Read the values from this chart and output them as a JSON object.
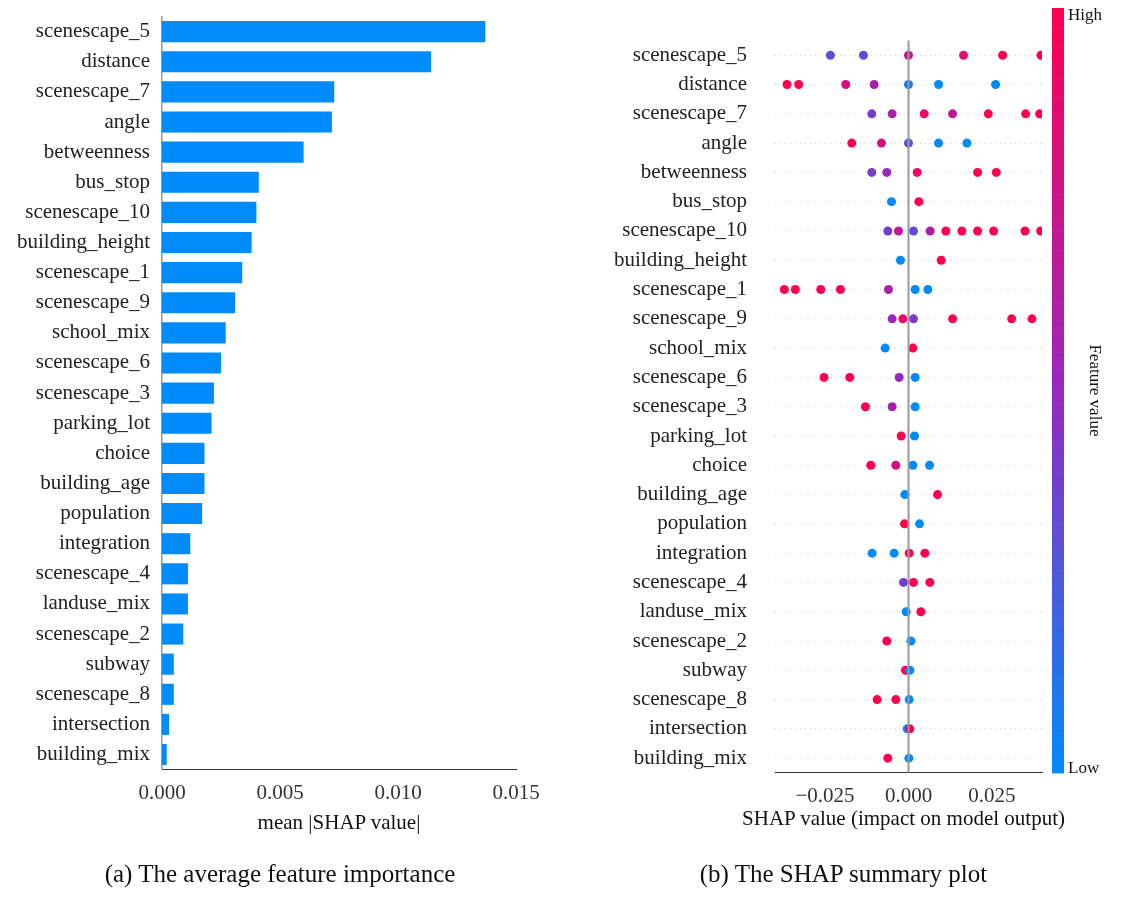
{
  "chart_data": [
    {
      "type": "bar",
      "orientation": "horizontal",
      "categories": [
        "scenescape_5",
        "distance",
        "scenescape_7",
        "angle",
        "betweenness",
        "bus_stop",
        "scenescape_10",
        "building_height",
        "scenescape_1",
        "scenescape_9",
        "school_mix",
        "scenescape_6",
        "scenescape_3",
        "parking_lot",
        "choice",
        "building_age",
        "population",
        "integration",
        "scenescape_4",
        "landuse_mix",
        "scenescape_2",
        "subway",
        "scenescape_8",
        "intersection",
        "building_mix"
      ],
      "values": [
        0.0137,
        0.0114,
        0.0073,
        0.0072,
        0.006,
        0.0041,
        0.004,
        0.0038,
        0.0034,
        0.0031,
        0.0027,
        0.0025,
        0.0022,
        0.0021,
        0.0018,
        0.0018,
        0.0017,
        0.0012,
        0.0011,
        0.0011,
        0.0009,
        0.0005,
        0.0005,
        0.0003,
        0.0002
      ],
      "color": "#008bfb",
      "xlim": [
        0,
        0.015
      ],
      "xticks": [
        {
          "value": 0,
          "label": "0.000"
        },
        {
          "value": 0.005,
          "label": "0.005"
        },
        {
          "value": 0.01,
          "label": "0.010"
        },
        {
          "value": 0.015,
          "label": "0.015"
        }
      ],
      "xlabel": "mean |SHAP value|",
      "annotations": [
        "(a) The average feature importance"
      ]
    },
    {
      "type": "scatter",
      "orientation": "horizontal",
      "marker": "circle",
      "grid": "y",
      "categories": [
        "scenescape_5",
        "distance",
        "scenescape_7",
        "angle",
        "betweenness",
        "bus_stop",
        "scenescape_10",
        "building_height",
        "scenescape_1",
        "scenescape_9",
        "school_mix",
        "scenescape_6",
        "scenescape_3",
        "parking_lot",
        "choice",
        "building_age",
        "population",
        "integration",
        "scenescape_4",
        "landuse_mix",
        "scenescape_2",
        "subway",
        "scenescape_8",
        "intersection",
        "building_mix"
      ],
      "series": [
        {
          "x": [
            "scenescape_5",
            "scenescape_5",
            "scenescape_5",
            "scenescape_5",
            "scenescape_5",
            "scenescape_5",
            "distance",
            "distance",
            "distance",
            "distance",
            "distance",
            "distance",
            "distance",
            "scenescape_7",
            "scenescape_7",
            "scenescape_7",
            "scenescape_7",
            "scenescape_7",
            "scenescape_7",
            "scenescape_7",
            "angle",
            "angle",
            "angle",
            "angle",
            "angle",
            "betweenness",
            "betweenness",
            "betweenness",
            "betweenness",
            "betweenness",
            "bus_stop",
            "bus_stop",
            "scenescape_10",
            "scenescape_10",
            "scenescape_10",
            "scenescape_10",
            "scenescape_10",
            "scenescape_10",
            "scenescape_10",
            "scenescape_10",
            "scenescape_10",
            "scenescape_10",
            "building_height",
            "building_height",
            "scenescape_1",
            "scenescape_1",
            "scenescape_1",
            "scenescape_1",
            "scenescape_1",
            "scenescape_1",
            "scenescape_1",
            "scenescape_9",
            "scenescape_9",
            "scenescape_9",
            "scenescape_9",
            "scenescape_9",
            "scenescape_9",
            "school_mix",
            "school_mix",
            "scenescape_6",
            "scenescape_6",
            "scenescape_6",
            "scenescape_6",
            "scenescape_3",
            "scenescape_3",
            "scenescape_3",
            "parking_lot",
            "parking_lot",
            "choice",
            "choice",
            "choice",
            "choice",
            "building_age",
            "building_age",
            "population",
            "population",
            "integration",
            "integration",
            "integration",
            "integration",
            "scenescape_4",
            "scenescape_4",
            "scenescape_4",
            "landuse_mix",
            "landuse_mix",
            "scenescape_2",
            "scenescape_2",
            "subway",
            "subway",
            "scenescape_8",
            "scenescape_8",
            "scenescape_8",
            "intersection",
            "intersection",
            "building_mix",
            "building_mix"
          ],
          "values": [
            -0.0234,
            -0.0135,
            0,
            0.0165,
            0.0282,
            0.0397,
            -0.0364,
            -0.0329,
            -0.0188,
            -0.0103,
            0,
            0.009,
            0.0261,
            -0.011,
            -0.0049,
            0.0047,
            0.0132,
            0.0239,
            0.0351,
            0.0393,
            -0.017,
            -0.0081,
            0,
            0.009,
            0.0175,
            -0.011,
            -0.0065,
            0.0026,
            0.0207,
            0.0263,
            -0.0051,
            0.0031,
            -0.0062,
            -0.003,
            0.0015,
            0.0065,
            0.0112,
            0.016,
            0.0207,
            0.0255,
            0.0349,
            0.0396,
            -0.0024,
            0.0098,
            -0.0372,
            -0.0339,
            -0.0263,
            -0.0204,
            -0.006,
            0.002,
            0.0058,
            -0.0049,
            -0.0017,
            0.0015,
            0.0132,
            0.0309,
            0.037,
            -0.007,
            0.0013,
            -0.0253,
            -0.0176,
            -0.0028,
            0.002,
            -0.0129,
            -0.0049,
            0.002,
            -0.0022,
            0.0018,
            -0.0113,
            -0.0038,
            0.0013,
            0.0063,
            -0.0011,
            0.0087,
            -0.0012,
            0.0033,
            -0.0109,
            -0.0043,
            0.0002,
            0.0049,
            -0.0015,
            0.0015,
            0.0064,
            -0.0007,
            0.0037,
            -0.0065,
            0.0007,
            -0.0009,
            0.0004,
            -0.0094,
            -0.0038,
            0.0002,
            -0.0004,
            0.0004,
            -0.0062,
            0.0001
          ],
          "cvalues": [
            0.3,
            0.3,
            0.7,
            0.85,
            1,
            1,
            1,
            1,
            0.8,
            0.6,
            0.1,
            0,
            0,
            0.4,
            0.6,
            0.9,
            0.7,
            1,
            1,
            1,
            1,
            0.8,
            0.3,
            0,
            0,
            0.4,
            0.5,
            0.9,
            1,
            1,
            0,
            1,
            0.4,
            0.7,
            0.3,
            0.6,
            1,
            1,
            1,
            1,
            1,
            1,
            0,
            1,
            1,
            1,
            1,
            1,
            0.6,
            0,
            0,
            0.5,
            0.9,
            0.4,
            1,
            1,
            1,
            0,
            1,
            1,
            1,
            0.5,
            0,
            1,
            0.6,
            0,
            1,
            0,
            1,
            0.8,
            0,
            0,
            0,
            1,
            1,
            0,
            0,
            0,
            1,
            1,
            0.4,
            1,
            1,
            0,
            1,
            1,
            0,
            1,
            0,
            1,
            1,
            0,
            0,
            1,
            1,
            0
          ]
        }
      ],
      "xlim": [
        -0.04,
        0.04
      ],
      "xticks": [
        {
          "value": -0.025,
          "label": "−0.025"
        },
        {
          "value": 0,
          "label": "0.000"
        },
        {
          "value": 0.025,
          "label": "0.025"
        }
      ],
      "ref_lines": [
        {
          "axis": "x",
          "value": 0,
          "color": "#999999"
        }
      ],
      "clim": [
        0,
        1
      ],
      "cticks": [
        {
          "value": 0,
          "label": "Low"
        },
        {
          "value": 1,
          "label": "High"
        }
      ],
      "clabel": "Feature value",
      "xlabel": "SHAP value (impact on model output)",
      "annotations": [
        "(b) The SHAP summary plot"
      ]
    }
  ]
}
